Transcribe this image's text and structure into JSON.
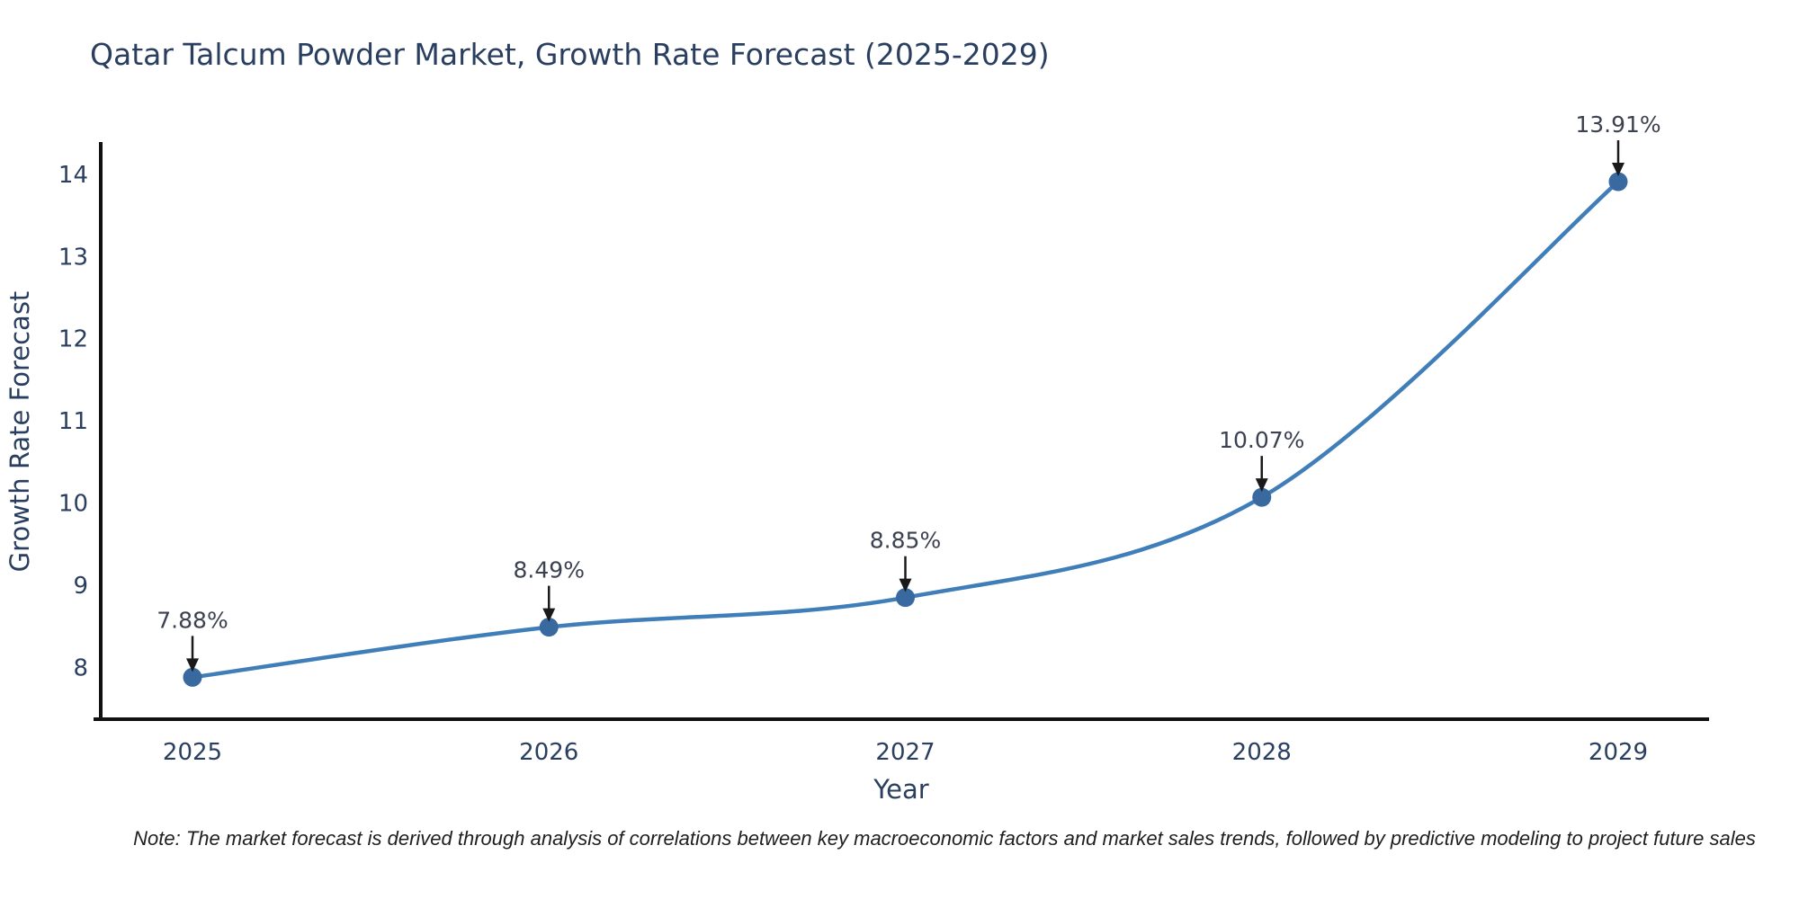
{
  "page": {
    "background": "#ffffff"
  },
  "chart_data": {
    "type": "line",
    "title": "Qatar Talcum Powder Market, Growth Rate Forecast (2025-2029)",
    "xlabel": "Year",
    "ylabel": "Growth Rate Forecast",
    "categories": [
      "2025",
      "2026",
      "2027",
      "2028",
      "2029"
    ],
    "values": [
      7.88,
      8.49,
      8.85,
      10.07,
      13.91
    ],
    "point_labels": [
      "7.88%",
      "8.49%",
      "8.85%",
      "10.07%",
      "13.91%"
    ],
    "yticks": [
      8,
      9,
      10,
      11,
      12,
      13,
      14
    ],
    "ylim": [
      7.37,
      14.37
    ],
    "line_shape": "spline",
    "grid": false,
    "legend_position": "none",
    "note": "Note: The market forecast is derived through analysis of correlations between key macroeconomic factors and market sales trends, followed by predictive modeling to project future sales",
    "colors": {
      "line": "#3f7eb9",
      "marker": "#38699f",
      "axis": "#111111",
      "title_text": "#2a3f5f",
      "tick_text": "#2a3f5f",
      "axis_label_text": "#2a3f5f",
      "annotation_text": "#3c4150",
      "arrow": "#1a1a1a",
      "note_text": "#1f1f1f"
    }
  }
}
